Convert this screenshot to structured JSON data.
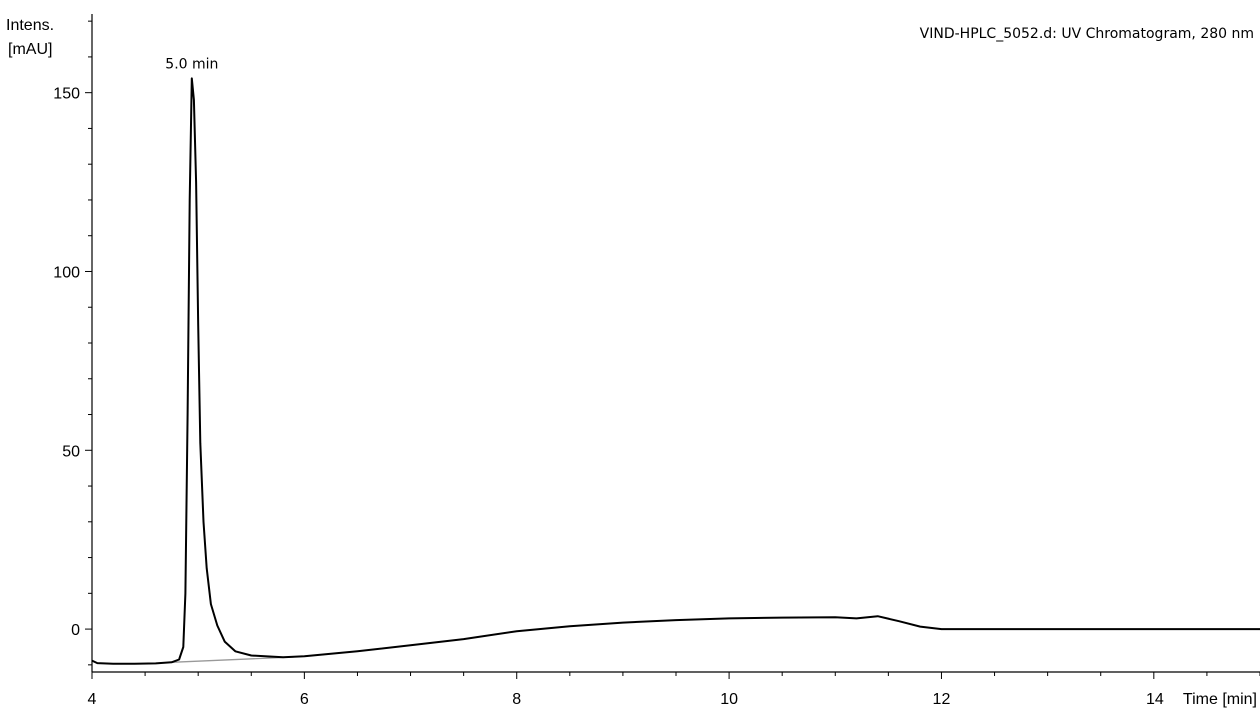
{
  "chart_data": {
    "type": "line",
    "title": "VIND-HPLC_5052.d: UV Chromatogram, 280 nm",
    "ylabel_line1": "Intens.",
    "ylabel_line2": "[mAU]",
    "xlabel": "Time [min]",
    "xlim": [
      4,
      15
    ],
    "ylim": [
      -12,
      172
    ],
    "xticks": [
      {
        "value": 4,
        "label": "4"
      },
      {
        "value": 6,
        "label": "6"
      },
      {
        "value": 8,
        "label": "8"
      },
      {
        "value": 10,
        "label": "10"
      },
      {
        "value": 12,
        "label": "12"
      },
      {
        "value": 14,
        "label": "14"
      }
    ],
    "yticks": [
      {
        "value": 0,
        "label": "0"
      },
      {
        "value": 50,
        "label": "50"
      },
      {
        "value": 100,
        "label": "100"
      },
      {
        "value": 150,
        "label": "150"
      }
    ],
    "x_minor_step": 0.5,
    "y_minor_step": 10,
    "grid": false,
    "annotations": [
      {
        "label": "5.0 min",
        "x": 4.95,
        "y": 154
      }
    ],
    "series": [
      {
        "color": "#000000",
        "points": [
          [
            4.0,
            -8.8
          ],
          [
            4.05,
            -9.5
          ],
          [
            4.2,
            -9.7
          ],
          [
            4.4,
            -9.7
          ],
          [
            4.6,
            -9.6
          ],
          [
            4.75,
            -9.3
          ],
          [
            4.82,
            -8.5
          ],
          [
            4.86,
            -5
          ],
          [
            4.88,
            10
          ],
          [
            4.9,
            60
          ],
          [
            4.92,
            120
          ],
          [
            4.94,
            154
          ],
          [
            4.96,
            148
          ],
          [
            4.98,
            125
          ],
          [
            5.0,
            85
          ],
          [
            5.02,
            52
          ],
          [
            5.05,
            30
          ],
          [
            5.08,
            17
          ],
          [
            5.12,
            7
          ],
          [
            5.18,
            1
          ],
          [
            5.25,
            -3.5
          ],
          [
            5.35,
            -6.2
          ],
          [
            5.5,
            -7.4
          ],
          [
            5.8,
            -7.9
          ],
          [
            6.0,
            -7.6
          ],
          [
            6.5,
            -6.2
          ],
          [
            7.0,
            -4.5
          ],
          [
            7.5,
            -2.8
          ],
          [
            8.0,
            -0.6
          ],
          [
            8.5,
            0.8
          ],
          [
            9.0,
            1.8
          ],
          [
            9.5,
            2.5
          ],
          [
            10.0,
            3.0
          ],
          [
            10.5,
            3.2
          ],
          [
            11.0,
            3.3
          ],
          [
            11.2,
            3.0
          ],
          [
            11.4,
            3.6
          ],
          [
            11.6,
            2.2
          ],
          [
            11.8,
            0.7
          ],
          [
            12.0,
            0.0
          ],
          [
            13.0,
            0.0
          ],
          [
            14.0,
            0.0
          ],
          [
            15.0,
            0.0
          ]
        ]
      }
    ],
    "baseline_segments": [
      {
        "color": "#999999",
        "points": [
          [
            4.75,
            -9.3
          ],
          [
            5.9,
            -7.8
          ]
        ]
      }
    ]
  }
}
